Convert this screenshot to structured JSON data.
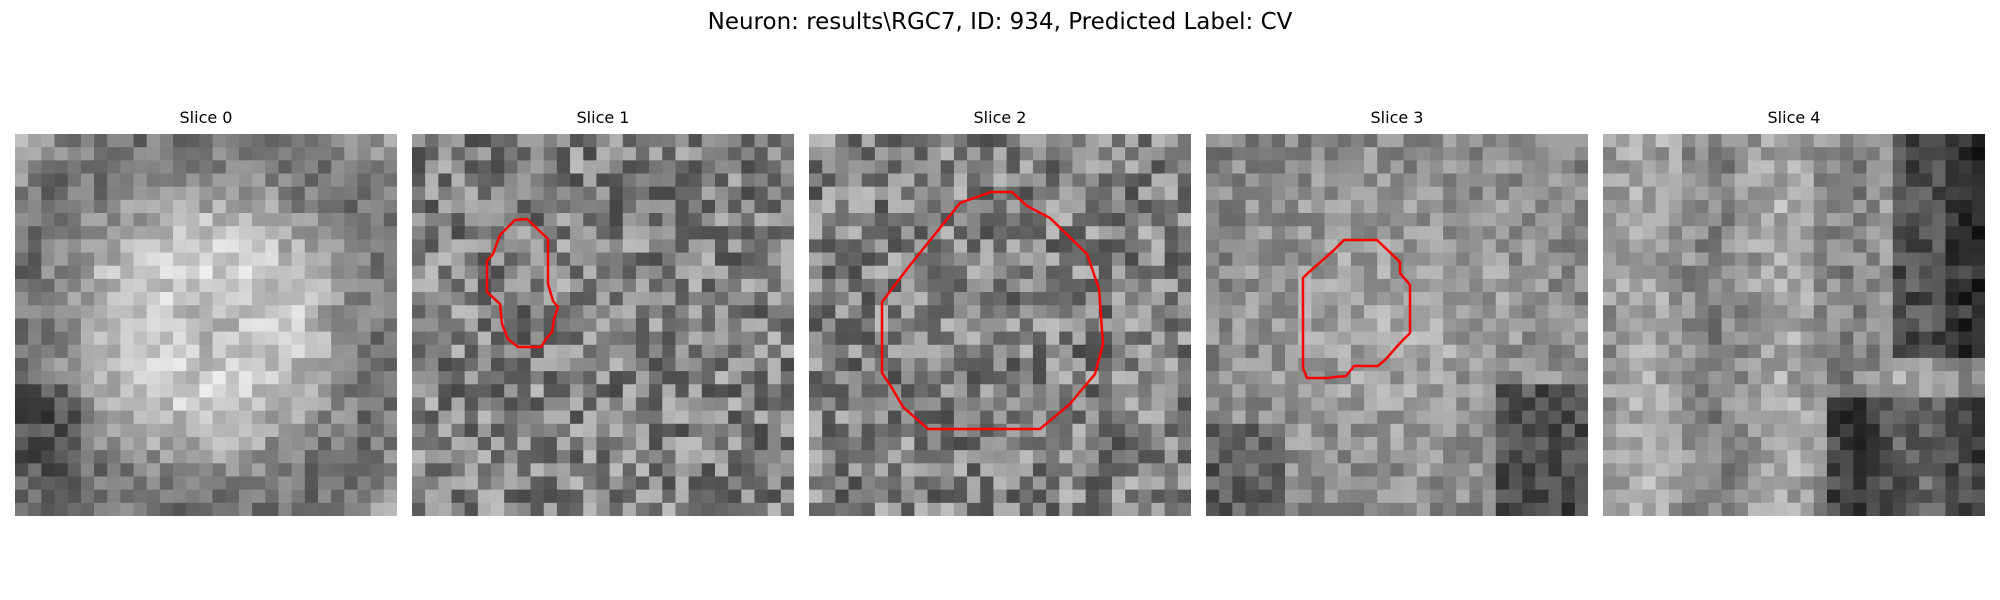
{
  "figure": {
    "title": "Neuron: results\\RGC7, ID: 934, Predicted Label: CV"
  },
  "slices": [
    {
      "title": "Slice 0",
      "has_outline": false,
      "seed": 11,
      "center_tone": "light-ring"
    },
    {
      "title": "Slice 1",
      "has_outline": true,
      "seed": 23,
      "center_tone": "noisy"
    },
    {
      "title": "Slice 2",
      "has_outline": true,
      "seed": 37,
      "center_tone": "noisy"
    },
    {
      "title": "Slice 3",
      "has_outline": true,
      "seed": 41,
      "center_tone": "dark-edges"
    },
    {
      "title": "Slice 4",
      "has_outline": false,
      "seed": 59,
      "center_tone": "dark-right"
    }
  ],
  "colors": {
    "outline": "#ff0000",
    "background": "#ffffff"
  }
}
